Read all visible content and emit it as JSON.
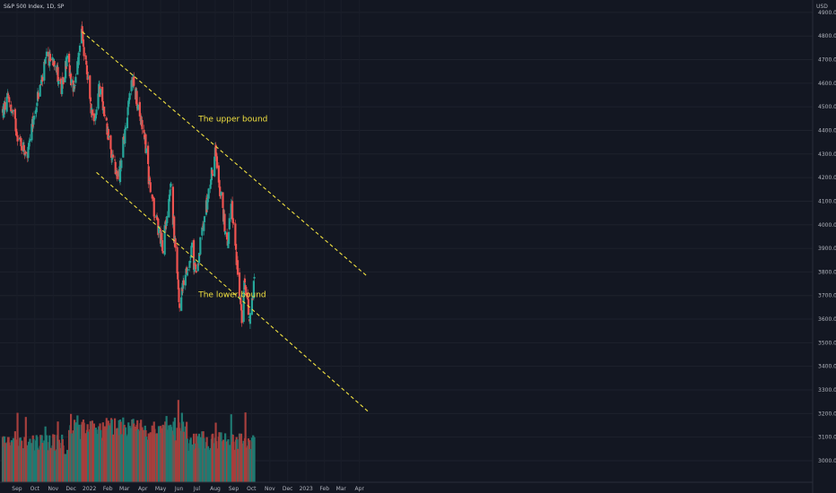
{
  "chart_data": {
    "type": "candlestick",
    "title": "S&P 500 Index, 1D, SP",
    "currency": "USD",
    "ylim": [
      2900,
      4950
    ],
    "y_ticks": [
      "4900.00",
      "4800.00",
      "4700.00",
      "4600.00",
      "4500.00",
      "4400.00",
      "4300.00",
      "4200.00",
      "4100.00",
      "4000.00",
      "3900.00",
      "3800.00",
      "3700.00",
      "3600.00",
      "3500.00",
      "3400.00",
      "3300.00",
      "3200.00",
      "3100.00",
      "3000.00"
    ],
    "x_ticks": [
      "Sep",
      "Oct",
      "Nov",
      "Dec",
      "2022",
      "Feb",
      "Mar",
      "Apr",
      "May",
      "Jun",
      "Jul",
      "Aug",
      "Sep",
      "Oct",
      "Nov",
      "Dec",
      "2023",
      "Feb",
      "Mar",
      "Apr"
    ],
    "price_path": [
      {
        "date": "2021-08-23",
        "close": 4480
      },
      {
        "date": "2021-09-02",
        "close": 4537
      },
      {
        "date": "2021-09-20",
        "close": 4358
      },
      {
        "date": "2021-10-04",
        "close": 4300
      },
      {
        "date": "2021-10-20",
        "close": 4530
      },
      {
        "date": "2021-11-05",
        "close": 4700
      },
      {
        "date": "2021-11-18",
        "close": 4705
      },
      {
        "date": "2021-11-30",
        "close": 4567
      },
      {
        "date": "2021-12-10",
        "close": 4710
      },
      {
        "date": "2021-12-20",
        "close": 4568
      },
      {
        "date": "2022-01-03",
        "close": 4796
      },
      {
        "date": "2022-01-24",
        "close": 4410
      },
      {
        "date": "2022-02-02",
        "close": 4590
      },
      {
        "date": "2022-02-24",
        "close": 4288
      },
      {
        "date": "2022-03-07",
        "close": 4202
      },
      {
        "date": "2022-03-29",
        "close": 4631
      },
      {
        "date": "2022-04-18",
        "close": 4390
      },
      {
        "date": "2022-04-29",
        "close": 4131
      },
      {
        "date": "2022-05-20",
        "close": 3901
      },
      {
        "date": "2022-06-02",
        "close": 4176
      },
      {
        "date": "2022-06-16",
        "close": 3667
      },
      {
        "date": "2022-07-08",
        "close": 3899
      },
      {
        "date": "2022-07-14",
        "close": 3790
      },
      {
        "date": "2022-08-16",
        "close": 4305
      },
      {
        "date": "2022-09-06",
        "close": 3908
      },
      {
        "date": "2022-09-12",
        "close": 4110
      },
      {
        "date": "2022-09-30",
        "close": 3585
      },
      {
        "date": "2022-10-04",
        "close": 3790
      },
      {
        "date": "2022-10-13",
        "close": 3577
      },
      {
        "date": "2022-10-21",
        "close": 3752
      }
    ],
    "trend_lines": [
      {
        "name": "upper",
        "start": {
          "date": "2022-01-04",
          "value": 4818
        },
        "end": {
          "date": "2023-04-30",
          "value": 3780
        }
      },
      {
        "name": "lower",
        "start": {
          "date": "2022-01-28",
          "value": 4222
        },
        "end": {
          "date": "2023-04-30",
          "value": 3210
        }
      }
    ],
    "annotations": [
      {
        "text": "The upper bound",
        "date": "2022-08-15",
        "value": 4450
      },
      {
        "text": "The lower bound",
        "date": "2022-08-15",
        "value": 3705
      }
    ],
    "series_colors": {
      "up": "#26a69a",
      "down": "#ef5350",
      "up_volume": "#1f7a72",
      "down_volume": "#a63f3d",
      "trend": "#f0e040"
    }
  }
}
